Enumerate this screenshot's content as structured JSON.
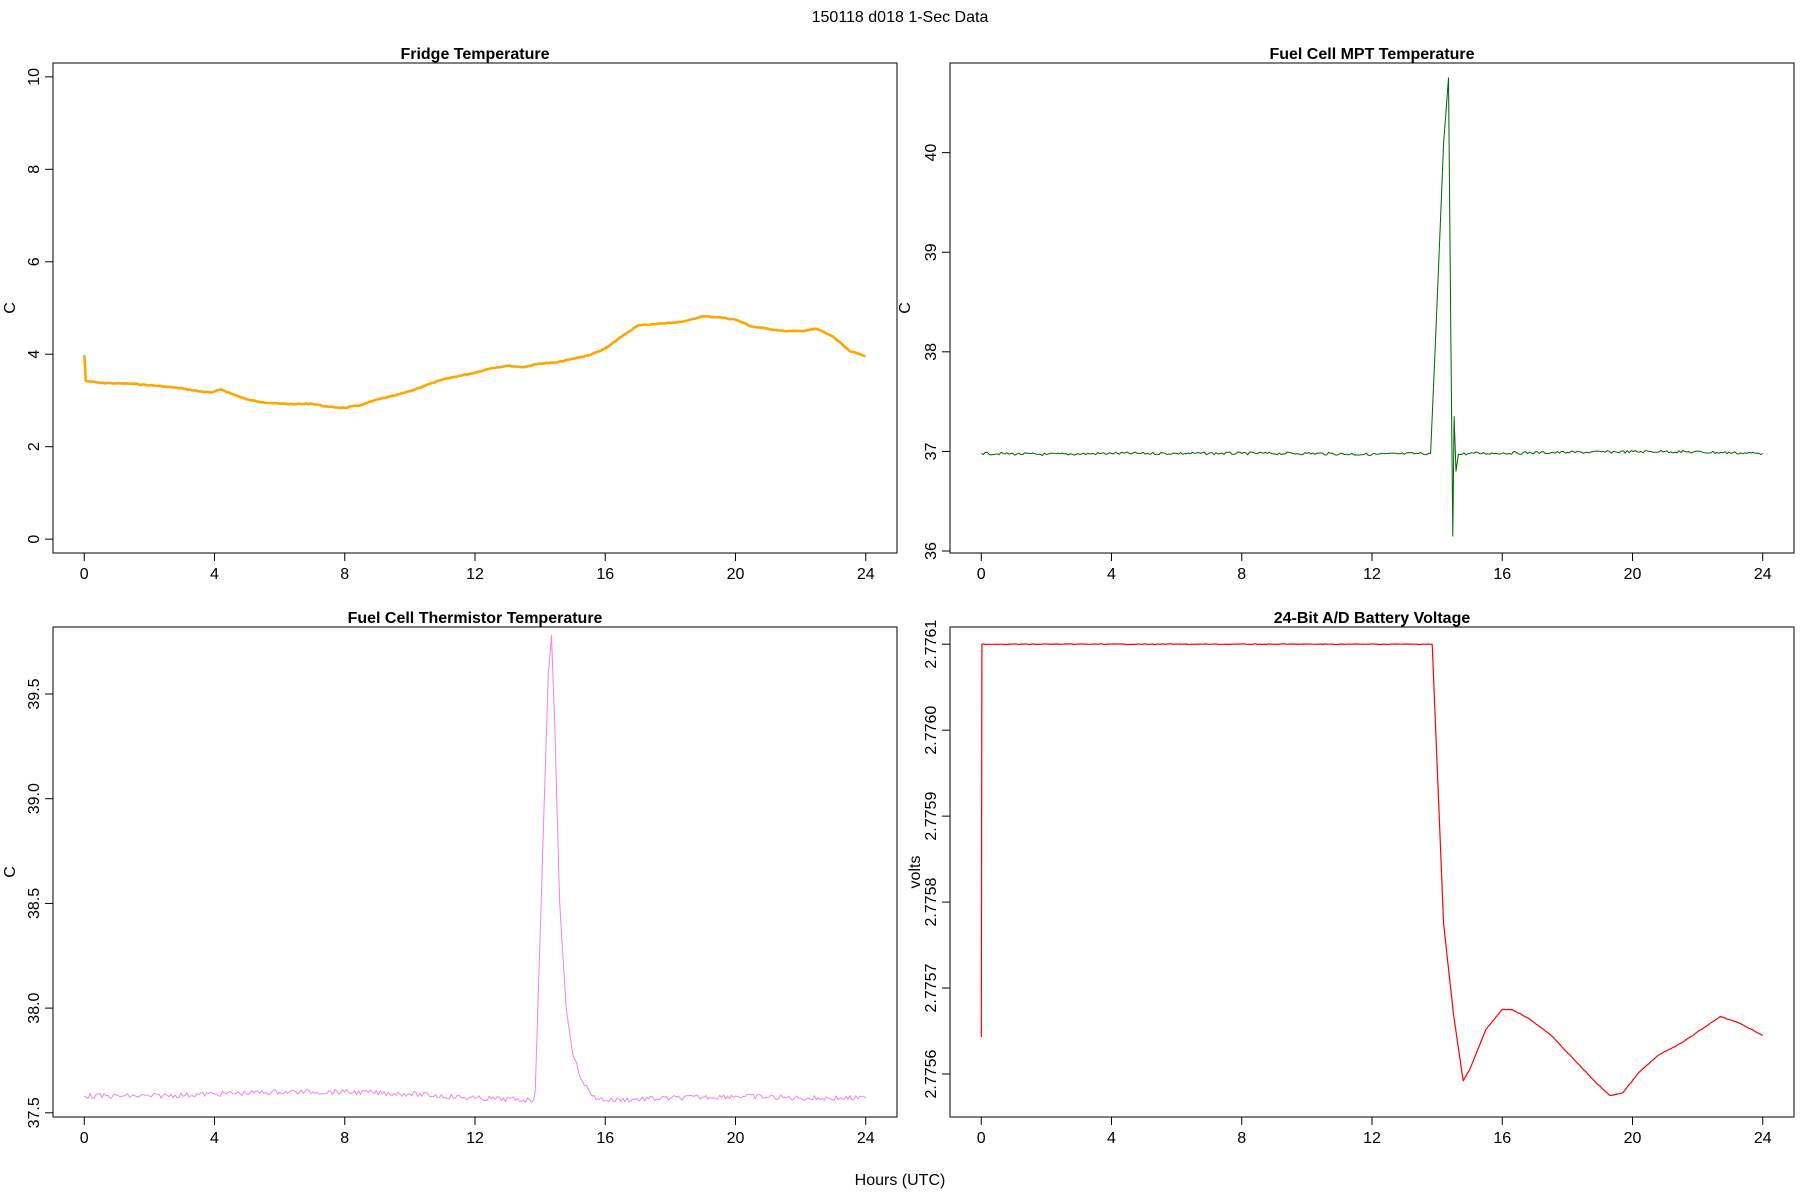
{
  "figure": {
    "title": "150118   d018   1-Sec Data",
    "xlabel": "Hours (UTC)"
  },
  "chart_data": [
    {
      "type": "line",
      "title": "Fridge Temperature",
      "xlabel": "Hours (UTC)",
      "ylabel": "C",
      "color": "#FFA500",
      "xlim": [
        0,
        24
      ],
      "ylim": [
        -0.3,
        10.3
      ],
      "xticks": [
        0,
        4,
        8,
        12,
        16,
        20,
        24
      ],
      "yticks": [
        0,
        2,
        4,
        6,
        8,
        10
      ],
      "ytick_labels": [
        "0",
        "2",
        "4",
        "6",
        "8",
        "10"
      ],
      "series": [
        {
          "name": "Fridge Temperature",
          "x": [
            0,
            0.05,
            0.5,
            1,
            1.5,
            2,
            2.5,
            3,
            3.5,
            3.9,
            4.2,
            4.5,
            5,
            5.5,
            6,
            6.5,
            7,
            7.5,
            8,
            8.5,
            9,
            9.5,
            10,
            10.5,
            11,
            11.5,
            12,
            12.5,
            13,
            13.5,
            14,
            14.5,
            15,
            15.5,
            16,
            16.5,
            17,
            17.5,
            18,
            18.5,
            19,
            19.5,
            20,
            20.5,
            21,
            21.5,
            22,
            22.5,
            23,
            23.5,
            24
          ],
          "values": [
            3.98,
            3.42,
            3.38,
            3.37,
            3.36,
            3.33,
            3.3,
            3.26,
            3.2,
            3.17,
            3.24,
            3.15,
            3.02,
            2.96,
            2.93,
            2.92,
            2.93,
            2.86,
            2.84,
            2.9,
            3.02,
            3.1,
            3.2,
            3.33,
            3.45,
            3.53,
            3.6,
            3.7,
            3.75,
            3.72,
            3.8,
            3.82,
            3.9,
            3.98,
            4.12,
            4.38,
            4.62,
            4.65,
            4.68,
            4.72,
            4.82,
            4.8,
            4.75,
            4.6,
            4.55,
            4.5,
            4.5,
            4.55,
            4.38,
            4.07,
            3.96
          ]
        }
      ]
    },
    {
      "type": "line",
      "title": "Fuel Cell MPT Temperature",
      "xlabel": "Hours (UTC)",
      "ylabel": "C",
      "color": "#006400",
      "xlim": [
        0,
        24
      ],
      "ylim": [
        35.98,
        40.9
      ],
      "xticks": [
        0,
        4,
        8,
        12,
        16,
        20,
        24
      ],
      "yticks": [
        36,
        37,
        38,
        39,
        40
      ],
      "ytick_labels": [
        "36",
        "37",
        "38",
        "39",
        "40"
      ],
      "series": [
        {
          "name": "Fuel Cell MPT Temperature",
          "x": [
            0,
            2,
            4,
            6,
            8,
            10,
            12,
            13.8,
            14.0,
            14.2,
            14.35,
            14.42,
            14.48,
            14.52,
            14.58,
            14.65,
            15,
            18,
            21,
            24
          ],
          "values": [
            36.98,
            36.97,
            36.98,
            36.98,
            36.98,
            36.98,
            36.97,
            36.98,
            38.5,
            40.1,
            40.75,
            38.2,
            36.15,
            37.35,
            36.8,
            36.97,
            36.98,
            36.99,
            37.0,
            36.98
          ]
        }
      ]
    },
    {
      "type": "line",
      "title": "Fuel Cell Thermistor Temperature",
      "xlabel": "Hours (UTC)",
      "ylabel": "C",
      "color": "#EE82EE",
      "xlim": [
        0,
        24
      ],
      "ylim": [
        37.48,
        39.82
      ],
      "xticks": [
        0,
        4,
        8,
        12,
        16,
        20,
        24
      ],
      "yticks": [
        37.5,
        38.0,
        38.5,
        39.0,
        39.5
      ],
      "ytick_labels": [
        "37.5",
        "38.0",
        "38.5",
        "39.0",
        "39.5"
      ],
      "series": [
        {
          "name": "Fuel Cell Thermistor Temperature",
          "x": [
            0,
            2,
            4,
            6,
            8,
            10,
            12,
            13.8,
            13.85,
            14.05,
            14.25,
            14.35,
            14.45,
            14.6,
            14.8,
            15.0,
            15.3,
            15.6,
            16,
            18,
            20,
            22,
            24
          ],
          "values": [
            37.58,
            37.58,
            37.59,
            37.6,
            37.6,
            37.59,
            37.57,
            37.56,
            37.6,
            38.6,
            39.6,
            39.78,
            39.35,
            38.5,
            38.0,
            37.78,
            37.65,
            37.58,
            37.56,
            37.57,
            37.58,
            37.57,
            37.57
          ]
        }
      ]
    },
    {
      "type": "line",
      "title": "24-Bit A/D Battery Voltage",
      "xlabel": "Hours (UTC)",
      "ylabel": "volts",
      "color": "#FF0000",
      "xlim": [
        0,
        24
      ],
      "ylim": [
        2.77555,
        2.77612
      ],
      "xticks": [
        0,
        4,
        8,
        12,
        16,
        20,
        24
      ],
      "yticks": [
        2.7756,
        2.7757,
        2.7758,
        2.7759,
        2.776,
        2.7761
      ],
      "ytick_labels": [
        "2.7756",
        "2.7757",
        "2.7758",
        "2.7759",
        "2.7760",
        "2.7761"
      ],
      "series": [
        {
          "name": "24-Bit A/D Battery Voltage",
          "x": [
            0,
            0.02,
            13.85,
            14.2,
            14.5,
            14.8,
            15.0,
            15.5,
            16.0,
            16.3,
            16.8,
            17.5,
            18.2,
            18.8,
            19.3,
            19.7,
            20.2,
            20.8,
            21.5,
            22.2,
            22.7,
            23.3,
            24
          ],
          "values": [
            2.775643,
            2.7761,
            2.7761,
            2.775775,
            2.77567,
            2.775592,
            2.775605,
            2.775652,
            2.775675,
            2.775675,
            2.775665,
            2.775645,
            2.775617,
            2.775593,
            2.775575,
            2.775578,
            2.775602,
            2.775622,
            2.775636,
            2.775654,
            2.775667,
            2.775659,
            2.775645
          ]
        }
      ]
    }
  ]
}
